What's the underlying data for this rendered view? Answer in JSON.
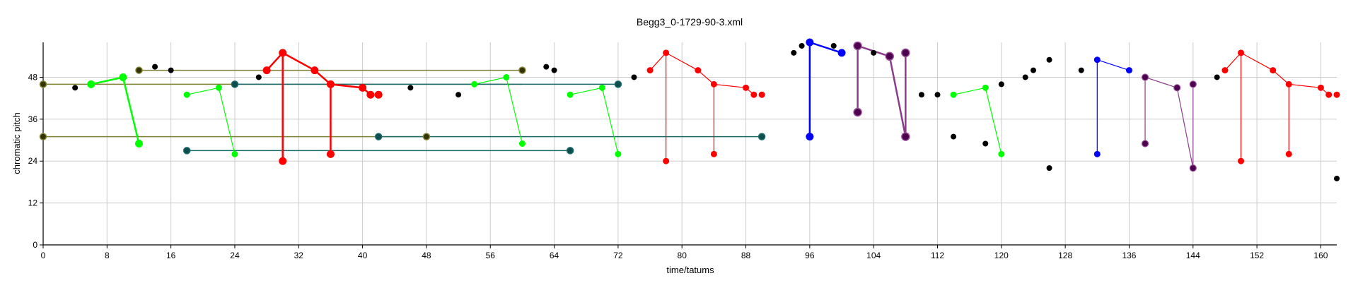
{
  "chart_data": {
    "type": "scatter",
    "title": "Begg3_0-1729-90-3.xml",
    "xlabel": "time/tatums",
    "ylabel": "chromatic pitch",
    "xlim": [
      0,
      162
    ],
    "ylim": [
      0,
      58
    ],
    "xticks": [
      0,
      8,
      16,
      24,
      32,
      40,
      48,
      56,
      64,
      72,
      80,
      88,
      96,
      104,
      112,
      120,
      128,
      136,
      144,
      152,
      160
    ],
    "yticks": [
      0,
      12,
      24,
      36,
      48
    ],
    "grid": true,
    "legend": "none",
    "series": [
      {
        "color": "#808033",
        "style": "olive",
        "points": [
          [
            0,
            46
          ],
          [
            0,
            31
          ],
          [
            12,
            50
          ],
          [
            48,
            31
          ],
          [
            60,
            50
          ]
        ],
        "segments": [
          [
            [
              0,
              46
            ],
            [
              60,
              46
            ]
          ],
          [
            [
              0,
              31
            ],
            [
              48,
              31
            ]
          ],
          [
            [
              12,
              50
            ],
            [
              60,
              50
            ]
          ]
        ]
      },
      {
        "color": "#1a6b6b",
        "style": "teal",
        "points": [
          [
            18,
            27
          ],
          [
            24,
            46
          ],
          [
            42,
            31
          ],
          [
            66,
            27
          ],
          [
            72,
            46
          ],
          [
            90,
            31
          ]
        ],
        "segments": [
          [
            [
              18,
              27
            ],
            [
              66,
              27
            ]
          ],
          [
            [
              24,
              46
            ],
            [
              72,
              46
            ]
          ],
          [
            [
              42,
              31
            ],
            [
              90,
              31
            ]
          ]
        ]
      },
      {
        "color": "#00ff00",
        "style": "green-bold",
        "points": [
          [
            6,
            46
          ],
          [
            10,
            48
          ],
          [
            12,
            29
          ]
        ],
        "segments": [
          [
            [
              6,
              46
            ],
            [
              10,
              48
            ]
          ],
          [
            [
              10,
              48
            ],
            [
              12,
              29
            ]
          ]
        ]
      },
      {
        "color": "#00ff00",
        "style": "green",
        "points": [
          [
            18,
            43
          ],
          [
            22,
            45
          ],
          [
            24,
            26
          ],
          [
            54,
            46
          ],
          [
            58,
            48
          ],
          [
            60,
            29
          ],
          [
            66,
            43
          ],
          [
            70,
            45
          ],
          [
            72,
            26
          ],
          [
            114,
            43
          ],
          [
            118,
            45
          ],
          [
            120,
            26
          ]
        ],
        "segments": [
          [
            [
              18,
              43
            ],
            [
              22,
              45
            ]
          ],
          [
            [
              22,
              45
            ],
            [
              24,
              26
            ]
          ],
          [
            [
              54,
              46
            ],
            [
              58,
              48
            ]
          ],
          [
            [
              58,
              48
            ],
            [
              60,
              29
            ]
          ],
          [
            [
              66,
              43
            ],
            [
              70,
              45
            ]
          ],
          [
            [
              70,
              45
            ],
            [
              72,
              26
            ]
          ],
          [
            [
              114,
              43
            ],
            [
              118,
              45
            ]
          ],
          [
            [
              118,
              45
            ],
            [
              120,
              26
            ]
          ]
        ]
      },
      {
        "color": "#ff0000",
        "style": "red-bold",
        "points": [
          [
            28,
            50
          ],
          [
            30,
            55
          ],
          [
            30,
            24
          ],
          [
            34,
            50
          ],
          [
            36,
            46
          ],
          [
            36,
            26
          ],
          [
            40,
            45
          ],
          [
            41,
            43
          ],
          [
            42,
            43
          ]
        ],
        "segments": [
          [
            [
              28,
              50
            ],
            [
              30,
              55
            ]
          ],
          [
            [
              30,
              55
            ],
            [
              30,
              24
            ]
          ],
          [
            [
              30,
              55
            ],
            [
              34,
              50
            ]
          ],
          [
            [
              34,
              50
            ],
            [
              36,
              46
            ]
          ],
          [
            [
              36,
              46
            ],
            [
              36,
              26
            ]
          ],
          [
            [
              36,
              46
            ],
            [
              40,
              45
            ]
          ],
          [
            [
              40,
              45
            ],
            [
              41,
              43
            ]
          ]
        ]
      },
      {
        "color": "#ff0000",
        "style": "red",
        "points": [
          [
            76,
            50
          ],
          [
            78,
            55
          ],
          [
            78,
            24
          ],
          [
            82,
            50
          ],
          [
            84,
            46
          ],
          [
            84,
            26
          ],
          [
            88,
            45
          ],
          [
            89,
            43
          ],
          [
            90,
            43
          ],
          [
            148,
            50
          ],
          [
            150,
            55
          ],
          [
            150,
            24
          ],
          [
            154,
            50
          ],
          [
            156,
            46
          ],
          [
            156,
            26
          ],
          [
            160,
            45
          ],
          [
            161,
            43
          ],
          [
            162,
            43
          ]
        ],
        "segments": [
          [
            [
              76,
              50
            ],
            [
              78,
              55
            ]
          ],
          [
            [
              78,
              55
            ],
            [
              78,
              24
            ]
          ],
          [
            [
              78,
              55
            ],
            [
              82,
              50
            ]
          ],
          [
            [
              82,
              50
            ],
            [
              84,
              46
            ]
          ],
          [
            [
              84,
              46
            ],
            [
              84,
              26
            ]
          ],
          [
            [
              84,
              46
            ],
            [
              88,
              45
            ]
          ],
          [
            [
              88,
              45
            ],
            [
              89,
              43
            ]
          ],
          [
            [
              148,
              50
            ],
            [
              150,
              55
            ]
          ],
          [
            [
              150,
              55
            ],
            [
              150,
              24
            ]
          ],
          [
            [
              150,
              55
            ],
            [
              154,
              50
            ]
          ],
          [
            [
              154,
              50
            ],
            [
              156,
              46
            ]
          ],
          [
            [
              156,
              46
            ],
            [
              156,
              26
            ]
          ],
          [
            [
              156,
              46
            ],
            [
              160,
              45
            ]
          ],
          [
            [
              160,
              45
            ],
            [
              161,
              43
            ]
          ]
        ]
      },
      {
        "color": "#0000ff",
        "style": "blue-bold",
        "points": [
          [
            96,
            58
          ],
          [
            96,
            31
          ],
          [
            100,
            55
          ]
        ],
        "segments": [
          [
            [
              96,
              58
            ],
            [
              96,
              31
            ]
          ],
          [
            [
              96,
              58
            ],
            [
              100,
              55
            ]
          ]
        ]
      },
      {
        "color": "#0000ff",
        "style": "blue",
        "points": [
          [
            132,
            53
          ],
          [
            132,
            26
          ],
          [
            136,
            50
          ]
        ],
        "segments": [
          [
            [
              132,
              53
            ],
            [
              132,
              26
            ]
          ],
          [
            [
              132,
              53
            ],
            [
              136,
              50
            ]
          ]
        ]
      },
      {
        "color": "#800080",
        "style": "purple-bold",
        "points": [
          [
            102,
            57
          ],
          [
            102,
            38
          ],
          [
            106,
            54
          ],
          [
            108,
            55
          ],
          [
            108,
            31
          ]
        ],
        "segments": [
          [
            [
              102,
              57
            ],
            [
              102,
              38
            ]
          ],
          [
            [
              102,
              57
            ],
            [
              106,
              54
            ]
          ],
          [
            [
              106,
              54
            ],
            [
              108,
              31
            ]
          ],
          [
            [
              108,
              55
            ],
            [
              108,
              31
            ]
          ]
        ]
      },
      {
        "color": "#800080",
        "style": "purple",
        "points": [
          [
            138,
            48
          ],
          [
            138,
            29
          ],
          [
            142,
            45
          ],
          [
            144,
            46
          ],
          [
            144,
            22
          ]
        ],
        "segments": [
          [
            [
              138,
              48
            ],
            [
              138,
              29
            ]
          ],
          [
            [
              138,
              48
            ],
            [
              142,
              45
            ]
          ],
          [
            [
              142,
              45
            ],
            [
              144,
              22
            ]
          ],
          [
            [
              144,
              46
            ],
            [
              144,
              22
            ]
          ]
        ]
      },
      {
        "color": "#000000",
        "style": "black",
        "points": [
          [
            4,
            45
          ],
          [
            14,
            51
          ],
          [
            16,
            50
          ],
          [
            27,
            48
          ],
          [
            46,
            45
          ],
          [
            52,
            43
          ],
          [
            63,
            51
          ],
          [
            64,
            50
          ],
          [
            74,
            48
          ],
          [
            94,
            55
          ],
          [
            95,
            57
          ],
          [
            99,
            57
          ],
          [
            104,
            55
          ],
          [
            110,
            43
          ],
          [
            112,
            43
          ],
          [
            114,
            31
          ],
          [
            118,
            29
          ],
          [
            120,
            46
          ],
          [
            123,
            48
          ],
          [
            124,
            50
          ],
          [
            126,
            53
          ],
          [
            126,
            22
          ],
          [
            130,
            50
          ],
          [
            147,
            48
          ],
          [
            162,
            19
          ]
        ],
        "segments": []
      }
    ]
  }
}
